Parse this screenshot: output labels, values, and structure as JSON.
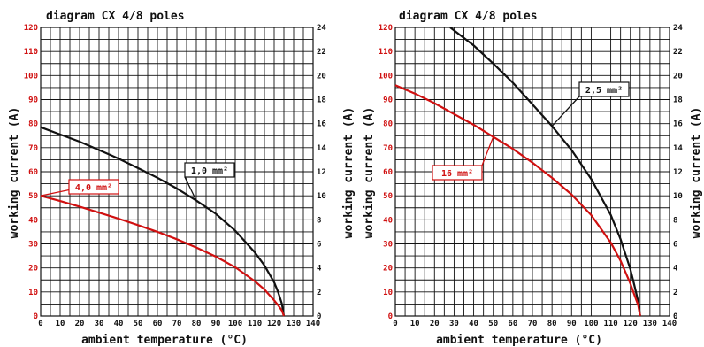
{
  "colors": {
    "black": "#111111",
    "red": "#d01010",
    "grid": "#111111"
  },
  "chart_data": [
    {
      "type": "line",
      "title": "diagram CX 4/8 poles",
      "xlabel": "ambient temperature (°C)",
      "ylabel_right": "working current (A)",
      "xlim": [
        0,
        140
      ],
      "ylim": [
        0,
        120
      ],
      "y2lim": [
        0,
        24
      ],
      "x_ticks": [
        0,
        10,
        20,
        30,
        40,
        50,
        60,
        70,
        80,
        90,
        100,
        110,
        120,
        130,
        140
      ],
      "y_ticks": [
        0,
        10,
        20,
        30,
        40,
        50,
        60,
        70,
        80,
        90,
        100,
        110,
        120
      ],
      "y2_ticks": [
        0,
        2,
        4,
        6,
        8,
        10,
        12,
        14,
        16,
        18,
        20,
        22,
        24
      ],
      "grid": true,
      "series": [
        {
          "name": "1,0 mm²",
          "color": "#111111",
          "axis": "right",
          "x": [
            0,
            10,
            20,
            30,
            40,
            50,
            60,
            70,
            80,
            90,
            100,
            110,
            115,
            120,
            122,
            124,
            125
          ],
          "y": [
            15.7,
            15.1,
            14.5,
            13.8,
            13.1,
            12.3,
            11.5,
            10.6,
            9.6,
            8.5,
            7.1,
            5.3,
            4.2,
            2.8,
            2.0,
            1.0,
            0
          ]
        },
        {
          "name": "4,0 mm²",
          "color": "#d01010",
          "axis": "left",
          "x": [
            0,
            10,
            20,
            30,
            40,
            50,
            60,
            70,
            80,
            90,
            100,
            110,
            115,
            120,
            122,
            124,
            125
          ],
          "y": [
            50,
            47.8,
            45.5,
            43.0,
            40.5,
            37.8,
            35.0,
            31.9,
            28.5,
            24.7,
            20.3,
            14.5,
            11.0,
            6.5,
            4.5,
            2.2,
            0
          ]
        }
      ]
    },
    {
      "type": "line",
      "title": "diagram CX 4/8 poles",
      "xlabel": "ambient temperature (°C)",
      "ylabel_right": "working current (A)",
      "xlim": [
        0,
        140
      ],
      "ylim": [
        0,
        120
      ],
      "y2lim": [
        0,
        24
      ],
      "x_ticks": [
        0,
        10,
        20,
        30,
        40,
        50,
        60,
        70,
        80,
        90,
        100,
        110,
        120,
        130,
        140
      ],
      "y_ticks": [
        0,
        10,
        20,
        30,
        40,
        50,
        60,
        70,
        80,
        90,
        100,
        110,
        120
      ],
      "y2_ticks": [
        0,
        2,
        4,
        6,
        8,
        10,
        12,
        14,
        16,
        18,
        20,
        22,
        24
      ],
      "grid": true,
      "series": [
        {
          "name": "2,5 mm²",
          "color": "#111111",
          "axis": "right",
          "x": [
            28,
            40,
            50,
            60,
            70,
            80,
            90,
            100,
            110,
            115,
            120,
            122,
            124,
            125
          ],
          "y": [
            24,
            22.5,
            21.0,
            19.4,
            17.6,
            15.8,
            13.8,
            11.4,
            8.4,
            6.4,
            3.9,
            2.6,
            1.2,
            0
          ]
        },
        {
          "name": "16 mm²",
          "color": "#d01010",
          "axis": "left",
          "x": [
            0,
            10,
            20,
            30,
            40,
            50,
            60,
            70,
            80,
            90,
            100,
            110,
            115,
            120,
            122,
            124,
            125
          ],
          "y": [
            96,
            92.5,
            88.5,
            84.0,
            79.5,
            74.5,
            69.5,
            63.8,
            57.5,
            50.5,
            42.0,
            30.5,
            23.0,
            13.5,
            9.0,
            4.5,
            0
          ]
        }
      ]
    }
  ]
}
